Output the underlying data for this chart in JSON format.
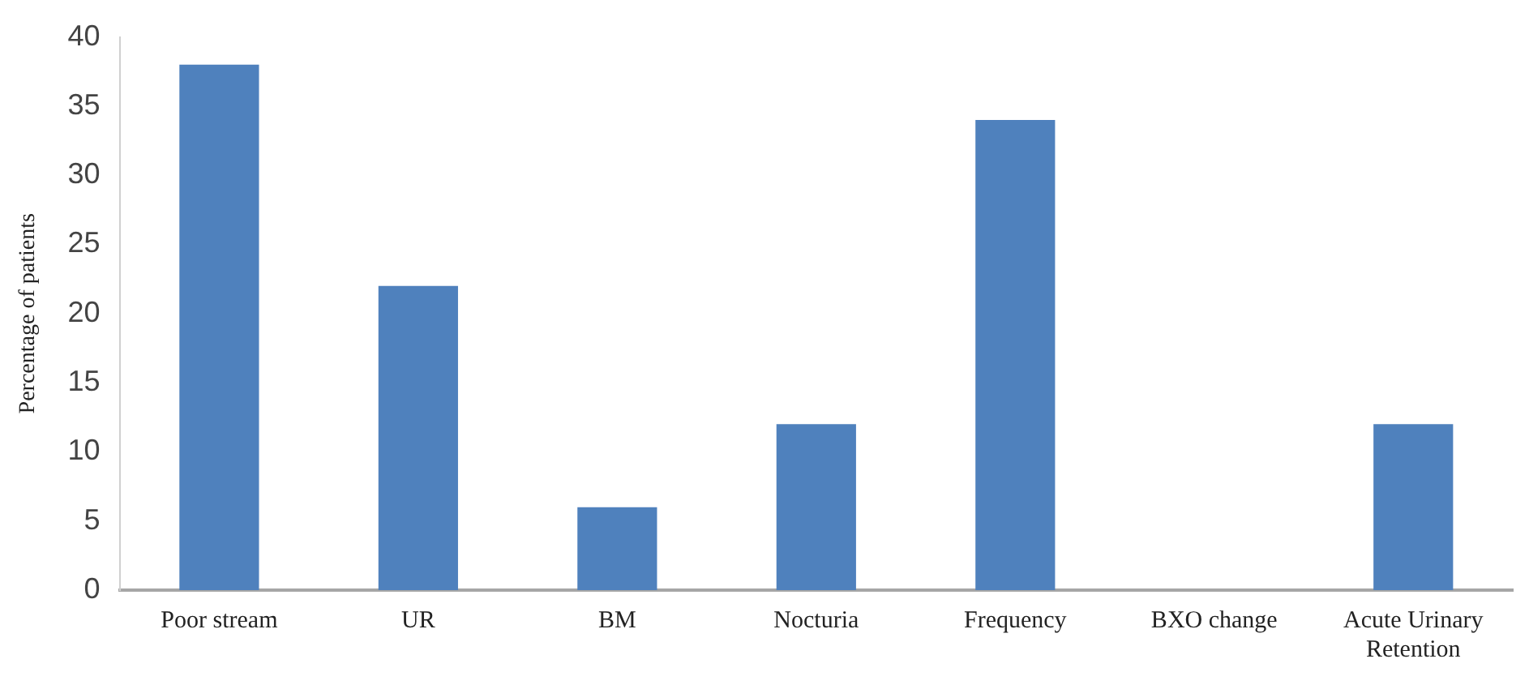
{
  "chart_data": {
    "type": "bar",
    "ylabel": "Percentage of patients",
    "categories": [
      "Poor stream",
      "UR",
      "BM",
      "Nocturia",
      "Frequency",
      "BXO change",
      "Acute Urinary Retention"
    ],
    "values": [
      38,
      22,
      6,
      12,
      34,
      0,
      12
    ],
    "color": "#4f81bd",
    "ylim": [
      0,
      40
    ],
    "yticks": [
      0,
      5,
      10,
      15,
      20,
      25,
      30,
      35,
      40
    ],
    "grid": false,
    "legend": false
  }
}
